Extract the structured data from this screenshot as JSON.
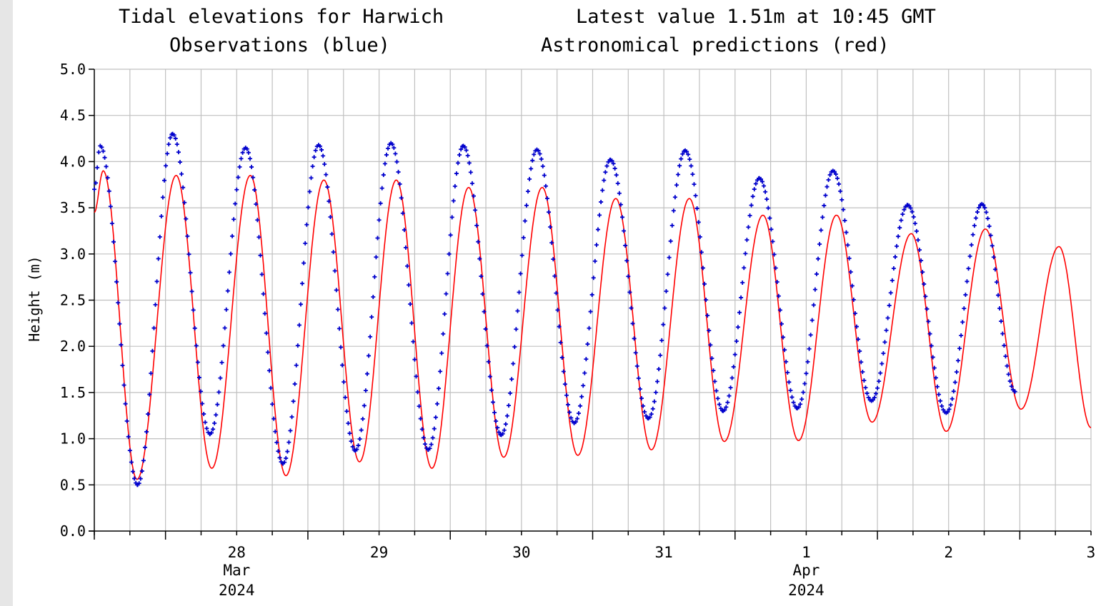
{
  "header": {
    "title_left": "Tidal elevations for Harwich",
    "title_right": "Latest value 1.51m at 10:45 GMT",
    "subtitle_left": "Observations (blue)",
    "subtitle_right": "Astronomical predictions (red)"
  },
  "colors": {
    "observations": "#0000cc",
    "predictions": "#ff0000",
    "grid": "#c0c0c0",
    "axis": "#000000",
    "left_strip": "#e6e6e6"
  },
  "chart_data": {
    "type": "line",
    "ylabel": "Height (m)",
    "ylim": [
      0.0,
      5.0
    ],
    "yticks": [
      "0.0",
      "0.5",
      "1.0",
      "1.5",
      "2.0",
      "2.5",
      "3.0",
      "3.5",
      "4.0",
      "4.5",
      "5.0"
    ],
    "x_unit": "hours since 2024-03-27 12:00",
    "xlim": [
      0,
      168
    ],
    "date_ticks": [
      {
        "label": "28",
        "month": "Mar",
        "year": "2024"
      },
      {
        "label": "29"
      },
      {
        "label": "30"
      },
      {
        "label": "31"
      },
      {
        "label": "1",
        "month": "Apr",
        "year": "2024"
      },
      {
        "label": "2"
      },
      {
        "label": "3"
      }
    ],
    "grid": true,
    "series": [
      {
        "name": "Observations (blue)",
        "marker": "plus",
        "extrema": [
          [
            0.0,
            3.7
          ],
          [
            1.0,
            4.17
          ],
          [
            7.3,
            0.5
          ],
          [
            13.2,
            4.3
          ],
          [
            19.5,
            1.05
          ],
          [
            25.5,
            4.15
          ],
          [
            31.8,
            0.73
          ],
          [
            37.8,
            4.18
          ],
          [
            44.0,
            0.87
          ],
          [
            50.0,
            4.2
          ],
          [
            56.3,
            0.88
          ],
          [
            62.2,
            4.17
          ],
          [
            68.6,
            1.04
          ],
          [
            74.6,
            4.13
          ],
          [
            80.9,
            1.17
          ],
          [
            87.0,
            4.02
          ],
          [
            93.4,
            1.22
          ],
          [
            99.6,
            4.12
          ],
          [
            106.0,
            1.3
          ],
          [
            112.1,
            3.82
          ],
          [
            118.5,
            1.33
          ],
          [
            124.5,
            3.9
          ],
          [
            131.0,
            1.41
          ],
          [
            137.1,
            3.53
          ],
          [
            143.6,
            1.28
          ],
          [
            149.6,
            3.54
          ],
          [
            155.2,
            1.51
          ]
        ]
      },
      {
        "name": "Astronomical predictions (red)",
        "marker": "line",
        "extrema": [
          [
            0.0,
            3.45
          ],
          [
            1.5,
            3.9
          ],
          [
            7.2,
            0.56
          ],
          [
            13.8,
            3.85
          ],
          [
            19.8,
            0.68
          ],
          [
            26.3,
            3.85
          ],
          [
            32.3,
            0.6
          ],
          [
            38.7,
            3.8
          ],
          [
            44.7,
            0.75
          ],
          [
            50.9,
            3.8
          ],
          [
            56.9,
            0.68
          ],
          [
            63.1,
            3.72
          ],
          [
            69.0,
            0.8
          ],
          [
            75.5,
            3.72
          ],
          [
            81.5,
            0.82
          ],
          [
            87.9,
            3.6
          ],
          [
            93.9,
            0.88
          ],
          [
            100.3,
            3.6
          ],
          [
            106.2,
            0.97
          ],
          [
            112.7,
            3.42
          ],
          [
            118.7,
            0.98
          ],
          [
            125.1,
            3.42
          ],
          [
            131.1,
            1.18
          ],
          [
            137.7,
            3.22
          ],
          [
            143.6,
            1.08
          ],
          [
            150.2,
            3.27
          ],
          [
            156.2,
            1.32
          ],
          [
            162.6,
            3.08
          ],
          [
            168.0,
            1.12
          ]
        ]
      }
    ]
  }
}
